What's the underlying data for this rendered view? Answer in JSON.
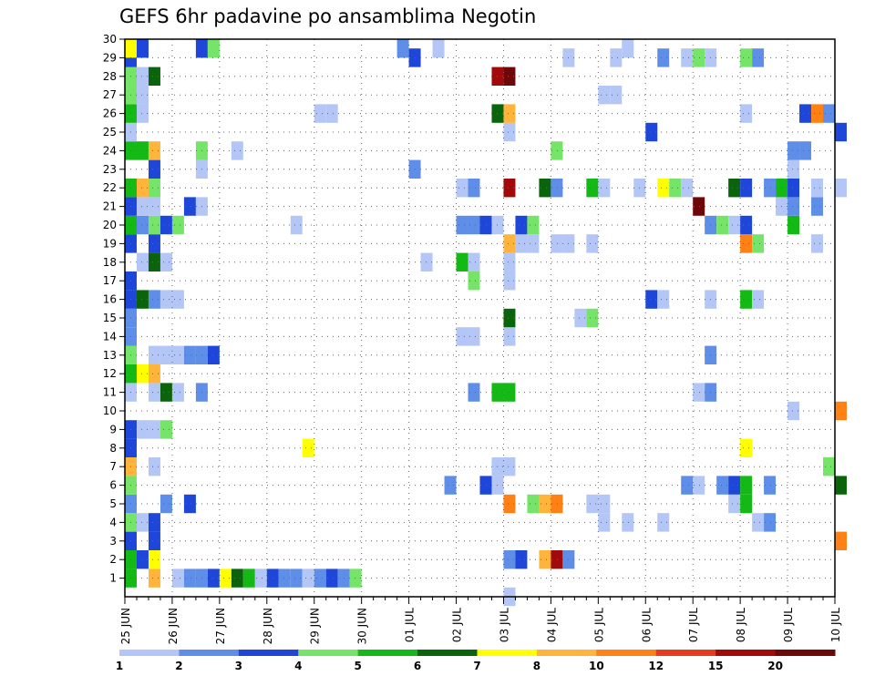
{
  "chart_data": {
    "type": "heatmap",
    "title": "GEFS 6hr padavine po ansamblima Negotin",
    "y_ticks": [
      "1",
      "2",
      "3",
      "4",
      "5",
      "6",
      "7",
      "8",
      "9",
      "10",
      "11",
      "12",
      "13",
      "14",
      "15",
      "16",
      "17",
      "18",
      "19",
      "20",
      "21",
      "22",
      "23",
      "24",
      "25",
      "26",
      "27",
      "28",
      "29",
      "30"
    ],
    "x_ticks": [
      "25 JUN",
      "26 JUN",
      "27 JUN",
      "28 JUN",
      "29 JUN",
      "30 JUN",
      "01 JUL",
      "02 JUL",
      "03 JUL",
      "04 JUL",
      "05 JUL",
      "06 JUL",
      "07 JUL",
      "08 JUL",
      "09 JUL",
      "10 JUL"
    ],
    "steps_per_day": 4,
    "step_count": 61,
    "colorbar": {
      "labels": [
        "1",
        "2",
        "3",
        "4",
        "5",
        "6",
        "7",
        "8",
        "10",
        "12",
        "15",
        "20"
      ],
      "colors": [
        "#b3c6f6",
        "#5f8ee8",
        "#1e46d8",
        "#76e468",
        "#15b915",
        "#0b640b",
        "#ffff00",
        "#ffb43c",
        "#ff8014",
        "#e63c1e",
        "#a00a0a",
        "#6e0808"
      ]
    },
    "cells": [
      [
        1,
        0,
        5
      ],
      [
        1,
        2,
        8
      ],
      [
        1,
        4,
        1
      ],
      [
        1,
        5,
        2
      ],
      [
        1,
        6,
        2
      ],
      [
        1,
        7,
        3
      ],
      [
        1,
        8,
        7
      ],
      [
        1,
        9,
        6
      ],
      [
        1,
        10,
        5
      ],
      [
        1,
        11,
        1
      ],
      [
        1,
        12,
        3
      ],
      [
        1,
        13,
        2
      ],
      [
        1,
        14,
        2
      ],
      [
        1,
        15,
        1
      ],
      [
        1,
        16,
        2
      ],
      [
        1,
        17,
        3
      ],
      [
        1,
        18,
        2
      ],
      [
        1,
        19,
        4
      ],
      [
        2,
        0,
        5
      ],
      [
        2,
        1,
        3
      ],
      [
        2,
        2,
        7
      ],
      [
        2,
        32,
        2
      ],
      [
        2,
        33,
        3
      ],
      [
        2,
        35,
        8
      ],
      [
        2,
        36,
        11
      ],
      [
        2,
        37,
        2
      ],
      [
        3,
        0,
        3
      ],
      [
        3,
        2,
        3
      ],
      [
        3,
        60,
        9
      ],
      [
        4,
        0,
        4
      ],
      [
        4,
        1,
        1
      ],
      [
        4,
        2,
        3
      ],
      [
        4,
        40,
        1
      ],
      [
        4,
        42,
        1
      ],
      [
        4,
        45,
        1
      ],
      [
        4,
        53,
        1
      ],
      [
        4,
        54,
        2
      ],
      [
        5,
        0,
        2
      ],
      [
        5,
        3,
        2
      ],
      [
        5,
        5,
        3
      ],
      [
        5,
        32,
        9
      ],
      [
        5,
        34,
        4
      ],
      [
        5,
        35,
        8
      ],
      [
        5,
        36,
        9
      ],
      [
        5,
        39,
        1
      ],
      [
        5,
        40,
        1
      ],
      [
        5,
        51,
        1
      ],
      [
        5,
        52,
        5
      ],
      [
        6,
        0,
        4
      ],
      [
        6,
        27,
        2
      ],
      [
        6,
        30,
        3
      ],
      [
        6,
        31,
        1
      ],
      [
        6,
        47,
        2
      ],
      [
        6,
        48,
        1
      ],
      [
        6,
        50,
        2
      ],
      [
        6,
        51,
        3
      ],
      [
        6,
        52,
        5
      ],
      [
        6,
        54,
        2
      ],
      [
        6,
        60,
        6
      ],
      [
        7,
        0,
        8
      ],
      [
        7,
        2,
        1
      ],
      [
        7,
        31,
        1
      ],
      [
        7,
        32,
        1
      ],
      [
        7,
        59,
        4
      ],
      [
        8,
        0,
        3
      ],
      [
        8,
        15,
        7
      ],
      [
        8,
        52,
        7
      ],
      [
        9,
        0,
        3
      ],
      [
        9,
        1,
        1
      ],
      [
        9,
        2,
        1
      ],
      [
        9,
        3,
        4
      ],
      [
        10,
        56,
        1
      ],
      [
        10,
        60,
        9
      ],
      [
        11,
        0,
        1
      ],
      [
        11,
        2,
        1
      ],
      [
        11,
        3,
        6
      ],
      [
        11,
        4,
        1
      ],
      [
        11,
        6,
        2
      ],
      [
        11,
        29,
        2
      ],
      [
        11,
        31,
        5
      ],
      [
        11,
        32,
        5
      ],
      [
        11,
        48,
        1
      ],
      [
        11,
        49,
        2
      ],
      [
        12,
        0,
        5
      ],
      [
        12,
        1,
        7
      ],
      [
        12,
        2,
        8
      ],
      [
        13,
        0,
        4
      ],
      [
        13,
        2,
        1
      ],
      [
        13,
        3,
        1
      ],
      [
        13,
        4,
        1
      ],
      [
        13,
        5,
        2
      ],
      [
        13,
        6,
        2
      ],
      [
        13,
        7,
        3
      ],
      [
        13,
        49,
        2
      ],
      [
        14,
        0,
        2
      ],
      [
        14,
        28,
        1
      ],
      [
        14,
        29,
        1
      ],
      [
        14,
        32,
        1
      ],
      [
        15,
        0,
        2
      ],
      [
        15,
        32,
        6
      ],
      [
        15,
        38,
        1
      ],
      [
        15,
        39,
        4
      ],
      [
        16,
        0,
        3
      ],
      [
        16,
        1,
        6
      ],
      [
        16,
        2,
        2
      ],
      [
        16,
        3,
        1
      ],
      [
        16,
        4,
        1
      ],
      [
        16,
        44,
        3
      ],
      [
        16,
        45,
        1
      ],
      [
        16,
        49,
        1
      ],
      [
        16,
        52,
        5
      ],
      [
        16,
        53,
        1
      ],
      [
        17,
        0,
        3
      ],
      [
        17,
        29,
        4
      ],
      [
        17,
        32,
        1
      ],
      [
        18,
        1,
        1
      ],
      [
        18,
        2,
        6
      ],
      [
        18,
        3,
        1
      ],
      [
        18,
        25,
        1
      ],
      [
        18,
        28,
        5
      ],
      [
        18,
        29,
        1
      ],
      [
        18,
        32,
        1
      ],
      [
        19,
        0,
        3
      ],
      [
        19,
        2,
        3
      ],
      [
        19,
        32,
        8
      ],
      [
        19,
        33,
        1
      ],
      [
        19,
        34,
        1
      ],
      [
        19,
        36,
        1
      ],
      [
        19,
        37,
        1
      ],
      [
        19,
        39,
        1
      ],
      [
        19,
        52,
        9
      ],
      [
        19,
        53,
        4
      ],
      [
        19,
        58,
        1
      ],
      [
        20,
        0,
        5
      ],
      [
        20,
        1,
        2
      ],
      [
        20,
        2,
        4
      ],
      [
        20,
        3,
        3
      ],
      [
        20,
        4,
        4
      ],
      [
        20,
        14,
        1
      ],
      [
        20,
        28,
        2
      ],
      [
        20,
        29,
        2
      ],
      [
        20,
        30,
        3
      ],
      [
        20,
        31,
        1
      ],
      [
        20,
        33,
        3
      ],
      [
        20,
        34,
        4
      ],
      [
        20,
        49,
        2
      ],
      [
        20,
        50,
        4
      ],
      [
        20,
        51,
        1
      ],
      [
        20,
        52,
        3
      ],
      [
        20,
        56,
        5
      ],
      [
        21,
        0,
        3
      ],
      [
        21,
        1,
        1
      ],
      [
        21,
        2,
        1
      ],
      [
        21,
        5,
        3
      ],
      [
        21,
        6,
        1
      ],
      [
        21,
        48,
        12
      ],
      [
        21,
        55,
        1
      ],
      [
        21,
        56,
        2
      ],
      [
        21,
        58,
        2
      ],
      [
        22,
        0,
        5
      ],
      [
        22,
        1,
        8
      ],
      [
        22,
        2,
        4
      ],
      [
        22,
        28,
        1
      ],
      [
        22,
        29,
        2
      ],
      [
        22,
        32,
        11
      ],
      [
        22,
        35,
        6
      ],
      [
        22,
        36,
        2
      ],
      [
        22,
        39,
        5
      ],
      [
        22,
        40,
        1
      ],
      [
        22,
        43,
        1
      ],
      [
        22,
        45,
        7
      ],
      [
        22,
        46,
        4
      ],
      [
        22,
        47,
        1
      ],
      [
        22,
        51,
        6
      ],
      [
        22,
        52,
        3
      ],
      [
        22,
        54,
        2
      ],
      [
        22,
        55,
        5
      ],
      [
        22,
        56,
        3
      ],
      [
        22,
        58,
        1
      ],
      [
        22,
        60,
        1
      ],
      [
        23,
        2,
        3
      ],
      [
        23,
        6,
        1
      ],
      [
        23,
        24,
        2
      ],
      [
        23,
        56,
        1
      ],
      [
        24,
        0,
        5
      ],
      [
        24,
        1,
        5
      ],
      [
        24,
        2,
        8
      ],
      [
        24,
        6,
        4
      ],
      [
        24,
        9,
        1
      ],
      [
        24,
        36,
        4
      ],
      [
        24,
        56,
        2
      ],
      [
        24,
        57,
        2
      ],
      [
        25,
        0,
        1
      ],
      [
        25,
        32,
        1
      ],
      [
        25,
        44,
        3
      ],
      [
        25,
        60,
        3
      ],
      [
        26,
        0,
        5
      ],
      [
        26,
        1,
        1
      ],
      [
        26,
        16,
        1
      ],
      [
        26,
        17,
        1
      ],
      [
        26,
        31,
        6
      ],
      [
        26,
        32,
        8
      ],
      [
        26,
        52,
        1
      ],
      [
        26,
        57,
        3
      ],
      [
        26,
        58,
        9
      ],
      [
        26,
        59,
        2
      ],
      [
        27,
        0,
        4
      ],
      [
        27,
        1,
        1
      ],
      [
        27,
        40,
        1
      ],
      [
        27,
        41,
        1
      ],
      [
        28,
        0,
        4
      ],
      [
        28,
        1,
        1
      ],
      [
        28,
        2,
        6
      ],
      [
        28,
        31,
        11
      ],
      [
        28,
        32,
        12
      ],
      [
        29,
        0,
        3
      ],
      [
        29,
        24,
        3
      ],
      [
        29,
        37,
        1
      ],
      [
        29,
        41,
        1
      ],
      [
        29,
        45,
        2
      ],
      [
        29,
        47,
        1
      ],
      [
        29,
        48,
        4
      ],
      [
        29,
        49,
        1
      ],
      [
        29,
        52,
        4
      ],
      [
        29,
        53,
        2
      ],
      [
        30,
        0,
        7
      ],
      [
        30,
        1,
        3
      ],
      [
        30,
        6,
        3
      ],
      [
        30,
        7,
        4
      ],
      [
        30,
        23,
        2
      ],
      [
        30,
        26,
        1
      ],
      [
        30,
        42,
        1
      ],
      [
        0,
        32,
        1
      ]
    ]
  }
}
